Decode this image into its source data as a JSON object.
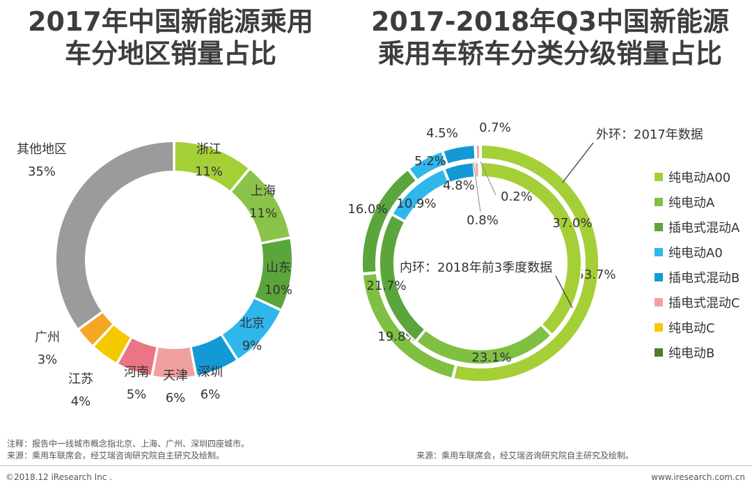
{
  "titles": {
    "left": "2017年中国新能源乘用\n车分地区销量占比",
    "right": "2017-2018年Q3中国新能源\n乘用车轿车分类分级销量占比"
  },
  "chart_data": [
    {
      "type": "pie",
      "title": "2017年中国新能源乘用车分地区销量占比",
      "unit": "%",
      "slices": [
        {
          "label": "浙江",
          "value": 11,
          "color": "#a5cf37"
        },
        {
          "label": "上海",
          "value": 11,
          "color": "#8bc34a"
        },
        {
          "label": "山东",
          "value": 10,
          "color": "#5aa63c"
        },
        {
          "label": "北京",
          "value": 9,
          "color": "#2fb7ec"
        },
        {
          "label": "深圳",
          "value": 6,
          "color": "#139ad6"
        },
        {
          "label": "天津",
          "value": 6,
          "color": "#f1a0a0"
        },
        {
          "label": "河南",
          "value": 5,
          "color": "#eb7585"
        },
        {
          "label": "江苏",
          "value": 4,
          "color": "#f6c800"
        },
        {
          "label": "广州",
          "value": 3,
          "color": "#f5a623"
        },
        {
          "label": "其他地区",
          "value": 35,
          "color": "#9b9b9b"
        }
      ]
    },
    {
      "type": "pie",
      "title": "2017-2018年Q3中国新能源乘用车轿车分类分级销量占比",
      "unit": "%",
      "categories": [
        "纯电动A00",
        "纯电动A",
        "插电式混动A",
        "纯电动A0",
        "插电式混动B",
        "插电式混动C",
        "纯电动C",
        "纯电动B"
      ],
      "colors": [
        "#a5cf37",
        "#7fc043",
        "#5aa63c",
        "#2fb7ec",
        "#139ad6",
        "#f1a0a0",
        "#f6c800",
        "#4e7d2a"
      ],
      "series": [
        {
          "name": "外环：2017年数据",
          "ring": "outer",
          "values": [
            53.7,
            19.8,
            16.0,
            5.2,
            4.5,
            0.7,
            0,
            0
          ],
          "labels": [
            "53.7%",
            "19.8%",
            "16.0%",
            "5.2%",
            "4.5%",
            "0.7%",
            "",
            ""
          ]
        },
        {
          "name": "内环：2018年前3季度数据",
          "ring": "inner",
          "values": [
            37.0,
            23.1,
            21.7,
            10.9,
            4.8,
            0.8,
            0.2,
            0
          ],
          "labels": [
            "37.0%",
            "23.1%",
            "21.7%",
            "10.9%",
            "4.8%",
            "0.8%",
            "0.2%",
            ""
          ]
        }
      ]
    }
  ],
  "legend_label": "外环：2017年数据",
  "inner_label": "内环：2018年前3季度数据",
  "notes": {
    "left_line1": "注释：报告中一线城市概念指北京、上海、广州、深圳四座城市。",
    "left_line2": "来源：乘用车联席会，经艾瑞咨询研究院自主研究及绘制。",
    "right": "来源：乘用车联席会，经艾瑞咨询研究院自主研究及绘制。"
  },
  "footer": {
    "left": "©2018.12 iResearch Inc .",
    "right": "www.iresearch.com.cn"
  }
}
